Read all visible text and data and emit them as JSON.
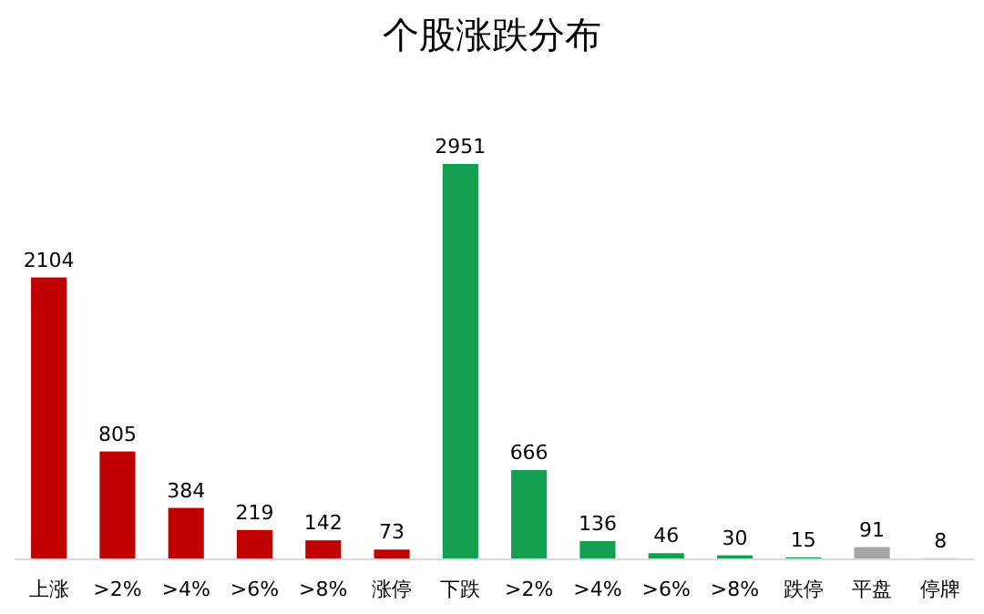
{
  "chart_data": {
    "type": "bar",
    "title": "个股涨跌分布",
    "categories": [
      "上涨",
      ">2%",
      ">4%",
      ">6%",
      ">8%",
      "涨停",
      "下跌",
      ">2%",
      ">4%",
      ">6%",
      ">8%",
      "跌停",
      "平盘",
      "停牌"
    ],
    "values": [
      2104,
      805,
      384,
      219,
      142,
      73,
      2951,
      666,
      136,
      46,
      30,
      15,
      91,
      8
    ],
    "colors": [
      "#c00000",
      "#c00000",
      "#c00000",
      "#c00000",
      "#c00000",
      "#c00000",
      "#12a050",
      "#12a050",
      "#12a050",
      "#12a050",
      "#12a050",
      "#12a050",
      "#a6a6a6",
      "#7f7f7f"
    ],
    "data_labels": true
  }
}
